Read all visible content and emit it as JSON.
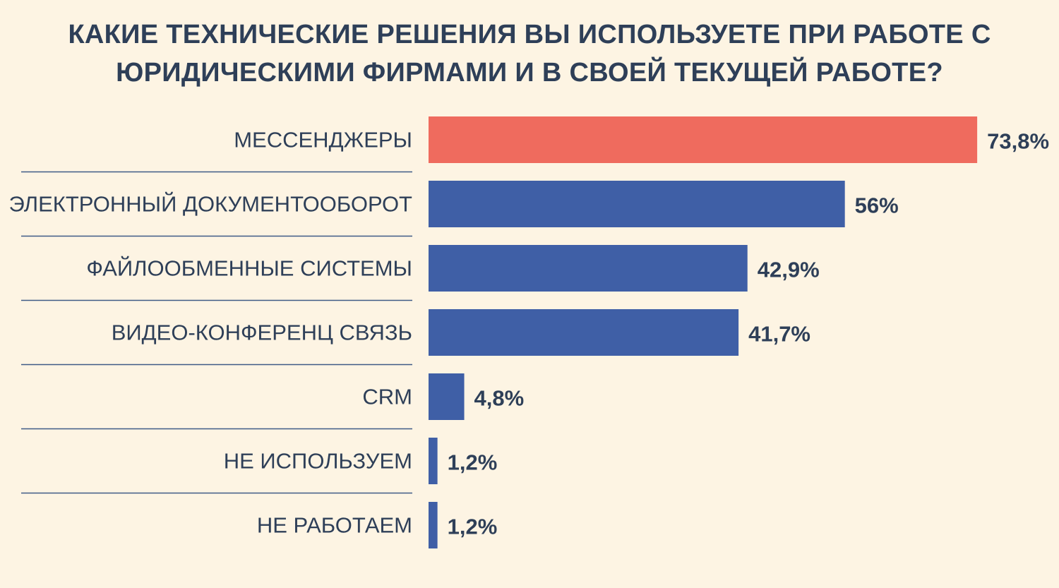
{
  "chart_data": {
    "type": "bar",
    "orientation": "horizontal",
    "title_lines": [
      "КАКИЕ ТЕХНИЧЕСКИЕ РЕШЕНИЯ ВЫ ИСПОЛЬЗУЕТЕ ПРИ РАБОТЕ С",
      "ЮРИДИЧЕСКИМИ ФИРМАМИ И В СВОЕЙ ТЕКУЩЕЙ РАБОТЕ?"
    ],
    "categories": [
      "МЕССЕНДЖЕРЫ",
      "ЭЛЕКТРОННЫЙ ДОКУМЕНТООБОРОТ",
      "ФАЙЛООБМЕННЫЕ СИСТЕМЫ",
      "ВИДЕО-КОНФЕРЕНЦ СВЯЗЬ",
      "CRM",
      "НЕ ИСПОЛЬЗУЕМ",
      "НЕ РАБОТАЕМ"
    ],
    "values": [
      73.8,
      56,
      42.9,
      41.7,
      4.8,
      1.2,
      1.2
    ],
    "value_labels": [
      "73,8%",
      "56%",
      "42,9%",
      "41,7%",
      "4,8%",
      "1,2%",
      "1,2%"
    ],
    "colors": [
      "#ef6b5e",
      "#3f5fa6",
      "#3f5fa6",
      "#3f5fa6",
      "#3f5fa6",
      "#3f5fa6",
      "#3f5fa6"
    ],
    "xlim": [
      0,
      100
    ],
    "grid": false,
    "legend": "none"
  }
}
